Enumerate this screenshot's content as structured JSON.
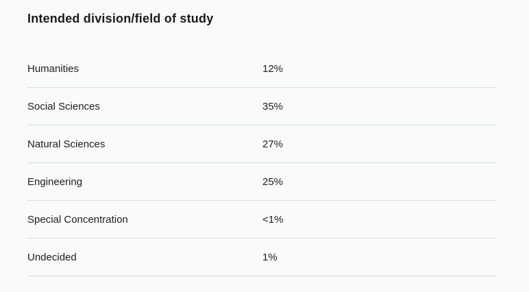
{
  "page": {
    "background_color": "#fafafa",
    "divider_color": "#d9dedf",
    "text_color": "#1e1e1e"
  },
  "table": {
    "title": "Intended division/field of study",
    "rows": [
      {
        "label": "Humanities",
        "value": "12%"
      },
      {
        "label": "Social Sciences",
        "value": "35%"
      },
      {
        "label": "Natural Sciences",
        "value": "27%"
      },
      {
        "label": "Engineering",
        "value": "25%"
      },
      {
        "label": "Special Concentration",
        "value": "<1%"
      },
      {
        "label": "Undecided",
        "value": "1%"
      }
    ]
  },
  "chart_data": {
    "type": "table",
    "title": "Intended division/field of study",
    "categories": [
      "Humanities",
      "Social Sciences",
      "Natural Sciences",
      "Engineering",
      "Special Concentration",
      "Undecided"
    ],
    "values_text": [
      "12%",
      "35%",
      "27%",
      "25%",
      "<1%",
      "1%"
    ],
    "values_numeric_pct": [
      12,
      35,
      27,
      25,
      0.5,
      1
    ],
    "layout": {
      "value_column": "left-aligned second column",
      "grid": "horizontal row dividers only",
      "legend": "none"
    }
  }
}
